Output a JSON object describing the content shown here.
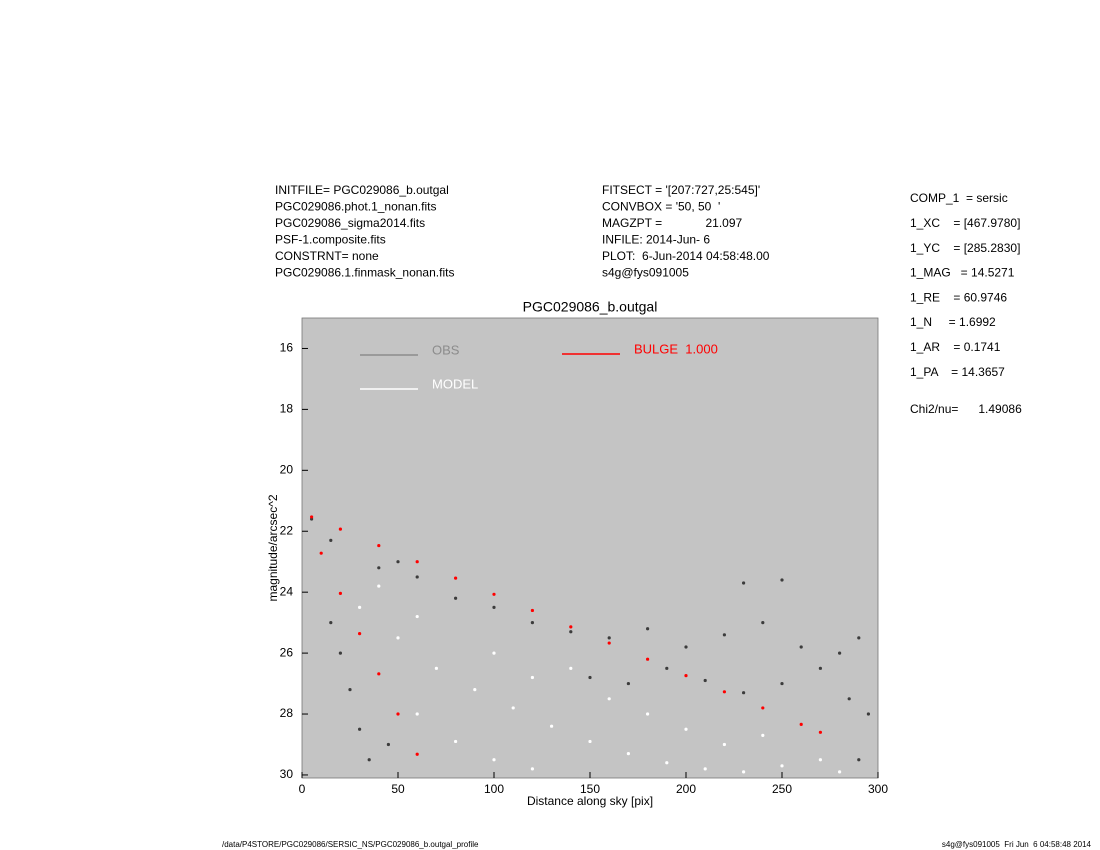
{
  "header": {
    "left": [
      "INITFILE= PGC029086_b.outgal",
      "PGC029086.phot.1_nonan.fits",
      "PGC029086_sigma2014.fits",
      "PSF-1.composite.fits",
      "CONSTRNT= none",
      "PGC029086.1.finmask_nonan.fits"
    ],
    "middle": [
      "FITSECT = '[207:727,25:545]'",
      "CONVBOX = '50, 50  '",
      "MAGZPT =             21.097",
      "INFILE: 2014-Jun- 6",
      "PLOT:  6-Jun-2014 04:58:48.00",
      "s4g@fys091005"
    ],
    "right": [
      "COMP_1  = sersic",
      "1_XC    = [467.9780]",
      "1_YC    = [285.2830]",
      "1_MAG   = 14.5271",
      "1_RE    = 60.9746",
      "1_N     = 1.6992",
      "1_AR    = 0.1741",
      "1_PA    = 14.3657",
      "Chi2/nu=      1.49086"
    ]
  },
  "footer": {
    "left": "/data/P4STORE/PGC029086/SERSIC_NS/PGC029086_b.outgal_profile",
    "right": "s4g@fys091005  Fri Jun  6 04:58:48 2014"
  },
  "chart_data": {
    "type": "scatter",
    "title": "PGC029086_b.outgal",
    "x_label": "Distance along sky [pix]",
    "y_label": "magnitude/arcsec^2",
    "xlim": [
      0,
      300
    ],
    "ylim": [
      30.1,
      15
    ],
    "xticks": [
      0,
      50,
      100,
      150,
      200,
      250,
      300
    ],
    "yticks": [
      16,
      18,
      20,
      22,
      24,
      26,
      28,
      30
    ],
    "background": "#c4c4c4",
    "series": [
      {
        "name": "OBS",
        "color": "#8c8c8c",
        "point_color": "#3c3c3c",
        "x": [
          5,
          15,
          40,
          50,
          60,
          80,
          100,
          120,
          140,
          160,
          180,
          200,
          220,
          240,
          260,
          280,
          290,
          230,
          250,
          150,
          170,
          190,
          210,
          230,
          250,
          270,
          285,
          295,
          290,
          20,
          25,
          30,
          35,
          45,
          15
        ],
        "values": [
          21.6,
          22.3,
          23.2,
          23.0,
          23.5,
          24.2,
          24.5,
          25.0,
          25.3,
          25.5,
          25.2,
          25.8,
          25.4,
          25.0,
          25.8,
          26.0,
          25.5,
          23.7,
          23.6,
          26.8,
          27.0,
          26.5,
          26.9,
          27.3,
          27.0,
          26.5,
          27.5,
          28.0,
          29.5,
          26.0,
          27.2,
          28.5,
          29.5,
          29.0,
          25.0
        ]
      },
      {
        "name": "MODEL",
        "color": "#ffffff",
        "point_color": "#ffffff",
        "x": [
          30,
          50,
          70,
          90,
          110,
          130,
          150,
          170,
          190,
          210,
          230,
          250,
          270,
          280,
          60,
          80,
          100,
          120,
          140,
          160,
          180,
          200,
          220,
          240,
          100,
          120,
          60,
          40
        ],
        "values": [
          24.5,
          25.5,
          26.5,
          27.2,
          27.8,
          28.4,
          28.9,
          29.3,
          29.6,
          29.8,
          29.9,
          29.7,
          29.5,
          29.9,
          28.0,
          28.9,
          29.5,
          29.8,
          26.5,
          27.5,
          28.0,
          28.5,
          29.0,
          28.7,
          26.0,
          26.8,
          24.8,
          23.8
        ]
      },
      {
        "name": "BULGE  1.000",
        "color": "#ff0000",
        "point_color": "#ff0000",
        "x": [
          5,
          20,
          40,
          60,
          80,
          100,
          120,
          140,
          160,
          180,
          200,
          220,
          240,
          260,
          270,
          10,
          20,
          30,
          40,
          50,
          60
        ],
        "values": [
          21.53,
          21.93,
          22.47,
          23.0,
          23.54,
          24.07,
          24.6,
          25.14,
          25.67,
          26.2,
          26.74,
          27.27,
          27.8,
          28.34,
          28.6,
          22.72,
          24.04,
          25.36,
          26.68,
          28.0,
          29.32
        ]
      }
    ]
  }
}
